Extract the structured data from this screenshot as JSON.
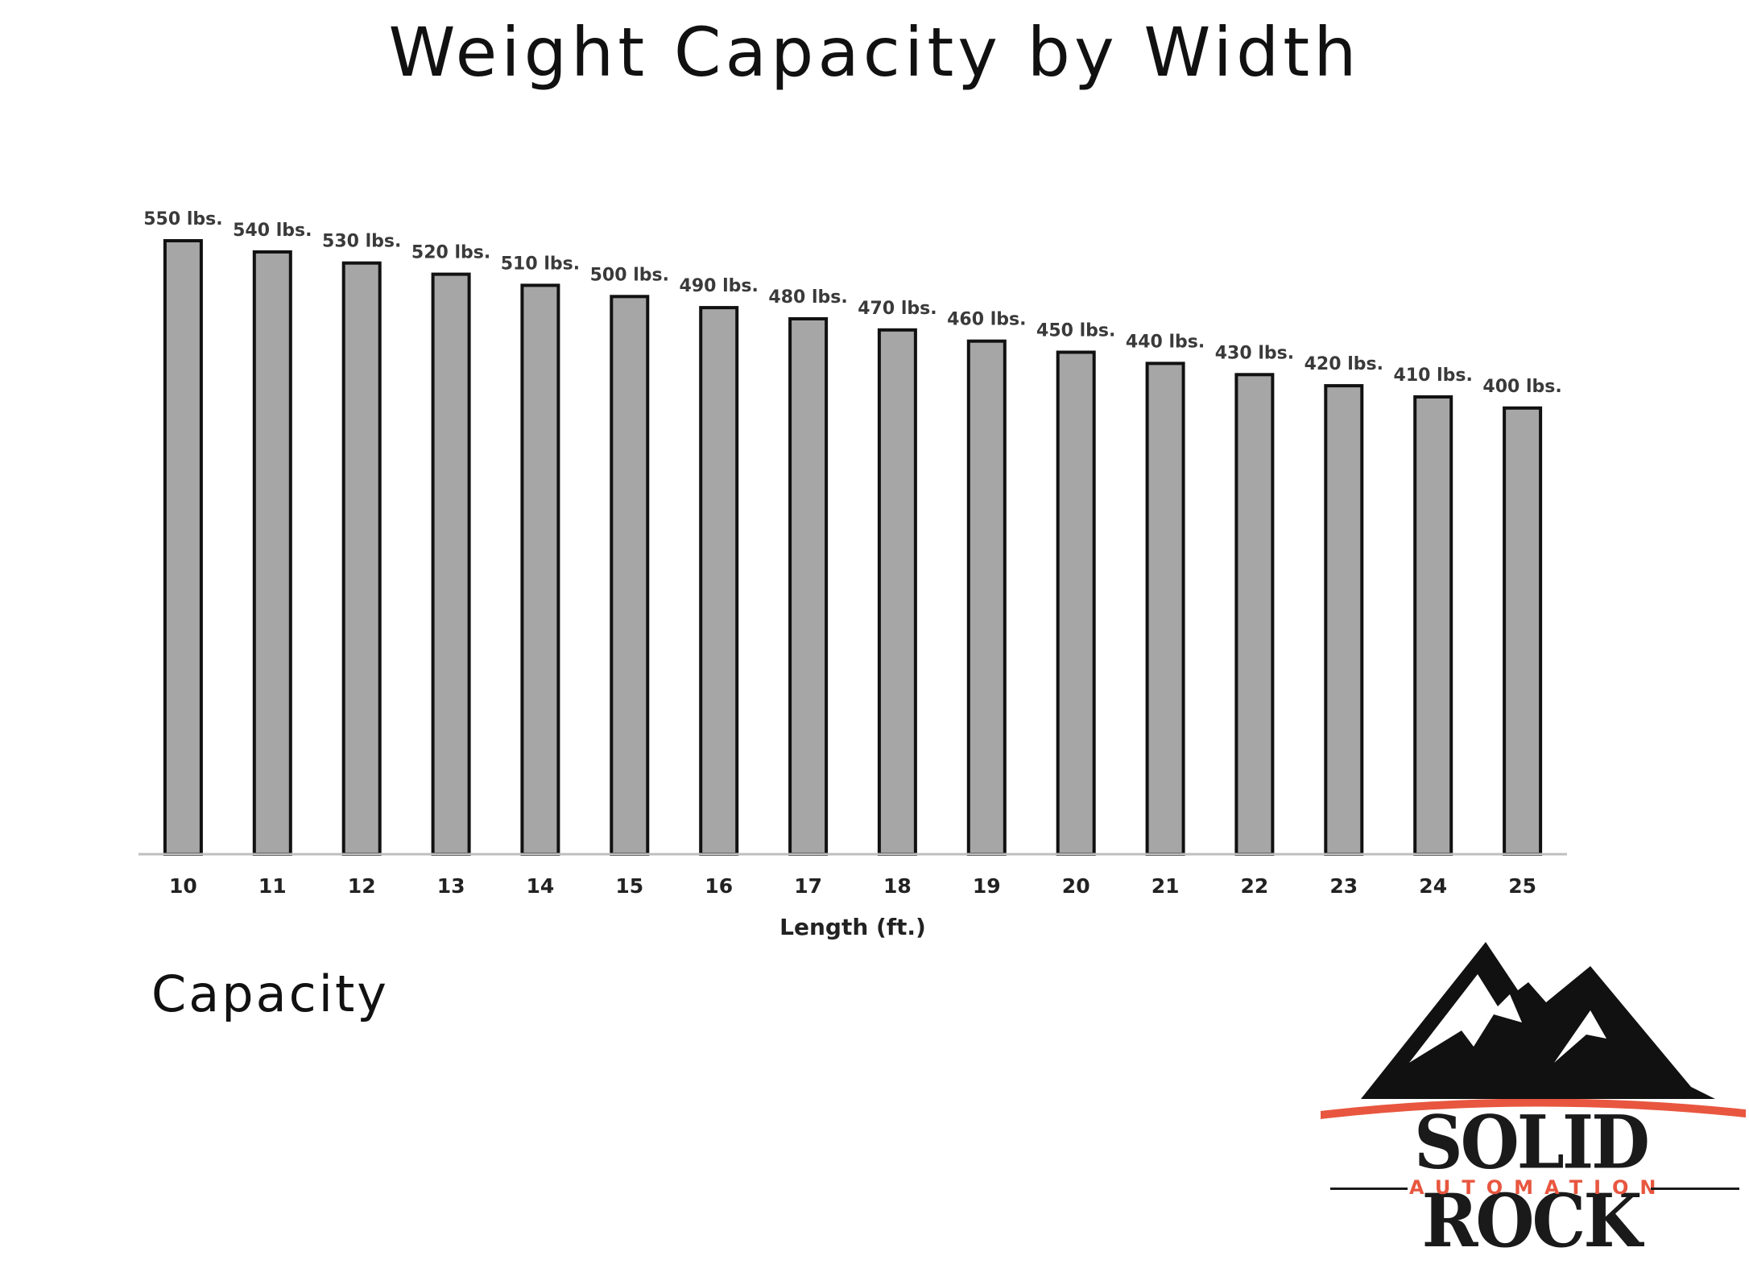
{
  "chart_data": {
    "type": "bar",
    "title": "Weight Capacity by Width",
    "xlabel": "Length (ft.)",
    "ylabel": "",
    "categories": [
      "10",
      "11",
      "12",
      "13",
      "14",
      "15",
      "16",
      "17",
      "18",
      "19",
      "20",
      "21",
      "22",
      "23",
      "24",
      "25"
    ],
    "values": [
      550,
      540,
      530,
      520,
      510,
      500,
      490,
      480,
      470,
      460,
      450,
      440,
      430,
      420,
      410,
      400
    ],
    "data_labels": [
      "550 lbs.",
      "540 lbs.",
      "530 lbs.",
      "520 lbs.",
      "510 lbs.",
      "500 lbs.",
      "490 lbs.",
      "480 lbs.",
      "470 lbs.",
      "460 lbs.",
      "450 lbs.",
      "440 lbs.",
      "430 lbs.",
      "420 lbs.",
      "410 lbs.",
      "400 lbs."
    ],
    "ylim": [
      0,
      550
    ],
    "grid": false,
    "legend": "none",
    "bar_color": "#a6a6a6",
    "bar_edge_color": "#111111"
  },
  "caption": "Capacity",
  "logo": {
    "name": "SOLID ROCK",
    "tagline": "AUTOMATION",
    "accent_color": "#e8563f"
  }
}
